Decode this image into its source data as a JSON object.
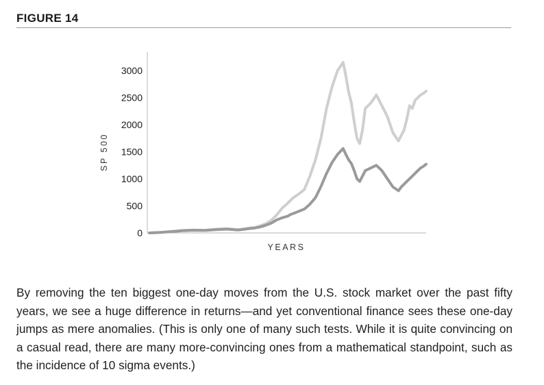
{
  "figure": {
    "title": "FIGURE 14",
    "caption": "By removing the ten biggest one-day moves from the U.S. stock market over the past fifty years, we see a huge difference in returns—and yet conventional finance sees these one-day jumps as mere anomalies. (This is only one of many such tests. While it is quite convincing on a casual read, there are many more-convincing ones from a mathematical standpoint, such as the incidence of 10 sigma events.)"
  },
  "chart_data": {
    "type": "line",
    "title": "",
    "xlabel": "YEARS",
    "ylabel": "SP 500",
    "ylim": [
      0,
      3200
    ],
    "yticks": [
      0,
      500,
      1000,
      1500,
      2000,
      2500,
      3000
    ],
    "grid": false,
    "legend": "none",
    "x": [
      0,
      4,
      8,
      12,
      16,
      20,
      24,
      28,
      32,
      34,
      36,
      38,
      40,
      42,
      44,
      46,
      48,
      50,
      51,
      52,
      54,
      56,
      58,
      60,
      62,
      64,
      66,
      68,
      70,
      71,
      72,
      73,
      74,
      75,
      76,
      77,
      78,
      80,
      82,
      84,
      86,
      88,
      90,
      91,
      92,
      93,
      94,
      95,
      96,
      97,
      98,
      99,
      100
    ],
    "series": [
      {
        "color": "#cfcfcf",
        "values": [
          0,
          10,
          25,
          45,
          55,
          50,
          70,
          80,
          60,
          75,
          90,
          100,
          130,
          170,
          230,
          330,
          460,
          550,
          600,
          650,
          720,
          800,
          1050,
          1350,
          1750,
          2300,
          2700,
          3000,
          3150,
          2900,
          2600,
          2400,
          2050,
          1750,
          1650,
          1900,
          2300,
          2400,
          2550,
          2350,
          2150,
          1850,
          1700,
          1800,
          1900,
          2100,
          2350,
          2300,
          2450,
          2500,
          2550,
          2580,
          2620
        ]
      },
      {
        "color": "#9a9a9a",
        "values": [
          0,
          10,
          25,
          40,
          50,
          45,
          60,
          70,
          55,
          65,
          80,
          90,
          110,
          140,
          180,
          240,
          280,
          310,
          340,
          360,
          400,
          440,
          530,
          650,
          860,
          1100,
          1300,
          1450,
          1560,
          1450,
          1350,
          1280,
          1150,
          1000,
          950,
          1050,
          1150,
          1200,
          1250,
          1150,
          1000,
          850,
          780,
          850,
          900,
          950,
          1000,
          1050,
          1100,
          1150,
          1200,
          1230,
          1270
        ]
      }
    ]
  }
}
